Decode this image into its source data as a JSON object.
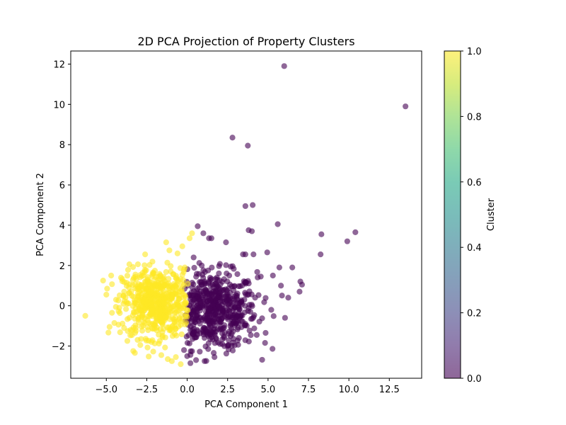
{
  "chart_data": {
    "type": "scatter",
    "title": "2D PCA Projection of Property Clusters",
    "xlabel": "PCA Component 1",
    "ylabel": "PCA Component 2",
    "xlim": [
      -7.2,
      14.5
    ],
    "ylim": [
      -3.6,
      12.65
    ],
    "xticks": [
      -5.0,
      -2.5,
      0.0,
      2.5,
      5.0,
      7.5,
      10.0,
      12.5
    ],
    "xtick_labels": [
      "−5.0",
      "−2.5",
      "0.0",
      "2.5",
      "5.0",
      "7.5",
      "10.0",
      "12.5"
    ],
    "yticks": [
      -2,
      0,
      2,
      4,
      6,
      8,
      10,
      12
    ],
    "ytick_labels": [
      "−2",
      "0",
      "2",
      "4",
      "6",
      "8",
      "10",
      "12"
    ],
    "grid": false,
    "marker_alpha": 0.6,
    "colorbar": {
      "label": "Cluster",
      "range": [
        0.0,
        1.0
      ],
      "ticks": [
        0.0,
        0.2,
        0.4,
        0.6,
        0.8,
        1.0
      ],
      "tick_labels": [
        "0.0",
        "0.2",
        "0.4",
        "0.6",
        "0.8",
        "1.0"
      ],
      "colormap": "viridis",
      "stops": [
        "#440154",
        "#482475",
        "#414487",
        "#355f8d",
        "#2a788e",
        "#21918c",
        "#22a884",
        "#44bf70",
        "#7ad151",
        "#bddf26",
        "#fde725"
      ]
    },
    "series": [
      {
        "cluster": 0,
        "color": "#440154",
        "points": [
          [
            6.0,
            11.9
          ],
          [
            13.5,
            9.9
          ],
          [
            2.8,
            8.35
          ],
          [
            3.75,
            7.95
          ],
          [
            3.6,
            4.95
          ],
          [
            4.05,
            5.0
          ],
          [
            5.6,
            4.05
          ],
          [
            3.8,
            3.75
          ],
          [
            4.0,
            3.7
          ],
          [
            8.3,
            3.55
          ],
          [
            10.4,
            3.65
          ],
          [
            9.9,
            3.2
          ],
          [
            8.25,
            2.55
          ],
          [
            0.65,
            3.95
          ],
          [
            1.0,
            3.6
          ],
          [
            1.35,
            3.35
          ],
          [
            1.5,
            3.35
          ],
          [
            2.4,
            3.15
          ],
          [
            3.45,
            2.55
          ],
          [
            3.6,
            2.55
          ],
          [
            4.1,
            2.55
          ],
          [
            4.95,
            2.65
          ],
          [
            5.7,
            1.9
          ],
          [
            6.5,
            1.9
          ],
          [
            7.0,
            1.2
          ],
          [
            7.1,
            1.05
          ],
          [
            6.25,
            0.4
          ],
          [
            6.95,
            0.7
          ],
          [
            6.05,
            -0.6
          ],
          [
            4.85,
            -1.35
          ],
          [
            4.3,
            -1.45
          ],
          [
            1.3,
            -2.15
          ],
          [
            0.55,
            -2.7
          ],
          [
            0.2,
            -2.85
          ],
          [
            0.0,
            -2.5
          ],
          [
            2.5,
            -2.0
          ],
          [
            3.2,
            -1.6
          ],
          [
            1.8,
            0.9
          ],
          [
            2.6,
            1.5
          ],
          [
            4.55,
            1.45
          ],
          [
            5.3,
            1.5
          ],
          [
            5.8,
            1.0
          ],
          [
            4.2,
            0.4
          ],
          [
            3.0,
            -0.1
          ],
          [
            0.4,
            2.4
          ],
          [
            0.9,
            2.0
          ],
          [
            1.15,
            1.1
          ],
          [
            0.3,
            0.4
          ],
          [
            0.6,
            -0.3
          ],
          [
            0.2,
            -1.2
          ],
          [
            1.7,
            -0.8
          ],
          [
            2.3,
            0.2
          ],
          [
            3.6,
            -0.9
          ],
          [
            5.2,
            -0.2
          ]
        ],
        "cloud": {
          "count": 560,
          "x_range": [
            -0.2,
            6.8
          ],
          "y_range": [
            -2.9,
            2.3
          ],
          "center": [
            1.6,
            -0.25
          ],
          "spread": [
            1.35,
            0.95
          ]
        }
      },
      {
        "cluster": 1,
        "color": "#fde725",
        "points": [
          [
            -6.3,
            -0.5
          ],
          [
            -5.2,
            1.25
          ],
          [
            -4.95,
            0.85
          ],
          [
            -5.0,
            0.55
          ],
          [
            -4.7,
            1.5
          ],
          [
            -4.8,
            -1.05
          ],
          [
            -4.65,
            -0.35
          ],
          [
            -4.2,
            -0.1
          ],
          [
            -3.7,
            -1.75
          ],
          [
            -3.5,
            -1.2
          ],
          [
            -3.2,
            1.55
          ],
          [
            -2.9,
            -1.95
          ],
          [
            -2.6,
            2.55
          ],
          [
            -2.2,
            -1.8
          ],
          [
            -1.6,
            -2.45
          ],
          [
            -1.3,
            3.15
          ],
          [
            -1.1,
            2.75
          ],
          [
            -0.6,
            2.6
          ],
          [
            -0.3,
            2.95
          ],
          [
            0.15,
            3.35
          ],
          [
            0.3,
            3.6
          ],
          [
            -1.2,
            -2.65
          ],
          [
            -0.95,
            -2.75
          ],
          [
            -0.4,
            -2.9
          ],
          [
            -0.7,
            -2.55
          ],
          [
            -3.9,
            0.7
          ],
          [
            -3.3,
            -0.3
          ],
          [
            -2.1,
            1.6
          ],
          [
            -0.2,
            1.8
          ],
          [
            -0.9,
            -1.5
          ],
          [
            -4.4,
            0.3
          ],
          [
            -3.6,
            0.9
          ],
          [
            -1.8,
            -0.6
          ],
          [
            -2.7,
            0.2
          ],
          [
            -0.5,
            0.5
          ]
        ],
        "cloud": {
          "count": 560,
          "x_range": [
            -4.9,
            0.05
          ],
          "y_range": [
            -2.85,
            2.5
          ],
          "center": [
            -1.9,
            0.15
          ],
          "spread": [
            1.05,
            0.85
          ]
        }
      }
    ]
  }
}
